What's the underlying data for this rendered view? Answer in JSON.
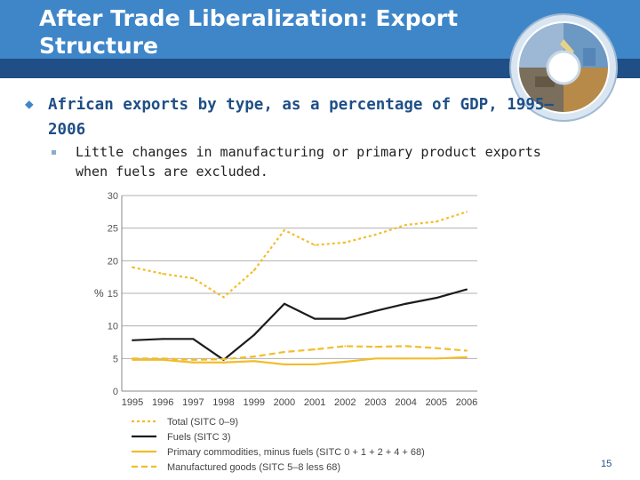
{
  "slide": {
    "title": "After Trade Liberalization: Export Structure",
    "bullet_main": "African exports by type, as a percentage of GDP, 1995–2006",
    "bullet_sub": "Little changes in manufacturing or primary product exports when fuels are excluded.",
    "page_number": "15"
  },
  "colors": {
    "title_band": "#3f86c9",
    "title_strip": "#1f4f86",
    "bullet_text": "#1f4f86",
    "gold": "#f2bd2c",
    "black": "#1c1c1c"
  },
  "chart_data": {
    "type": "line",
    "ylabel": "%",
    "ylim": [
      0,
      30
    ],
    "yticks": [
      0,
      5,
      10,
      15,
      20,
      25,
      30
    ],
    "grid": "horizontal",
    "legend_position": "bottom",
    "x": [
      "1995",
      "1996",
      "1997",
      "1998",
      "1999",
      "2000",
      "2001",
      "2002",
      "2003",
      "2004",
      "2005",
      "2006"
    ],
    "series": [
      {
        "name": "Total (SITC 0–9)",
        "style": "dotted",
        "color": "#f2bd2c",
        "values": [
          19,
          18,
          17.3,
          14.4,
          18.5,
          24.7,
          22.4,
          22.8,
          24,
          25.5,
          26,
          27.5
        ]
      },
      {
        "name": "Fuels (SITC 3)",
        "style": "solid",
        "color": "#1c1c1c",
        "values": [
          7.8,
          8,
          8,
          4.8,
          8.6,
          13.4,
          11.1,
          11.1,
          12.3,
          13.4,
          14.3,
          15.6
        ]
      },
      {
        "name": "Primary commodities, minus fuels (SITC 0 + 1 + 2 + 4 + 68)",
        "style": "solid",
        "color": "#f2bd2c",
        "values": [
          4.8,
          4.8,
          4.4,
          4.4,
          4.6,
          4.1,
          4.1,
          4.5,
          5,
          5,
          5,
          5.2
        ]
      },
      {
        "name": "Manufactured goods (SITC 5–8 less 68)",
        "style": "dashed",
        "color": "#f2bd2c",
        "values": [
          5,
          5,
          4.8,
          4.9,
          5.3,
          6,
          6.4,
          6.9,
          6.8,
          6.9,
          6.6,
          6.2
        ]
      }
    ]
  }
}
